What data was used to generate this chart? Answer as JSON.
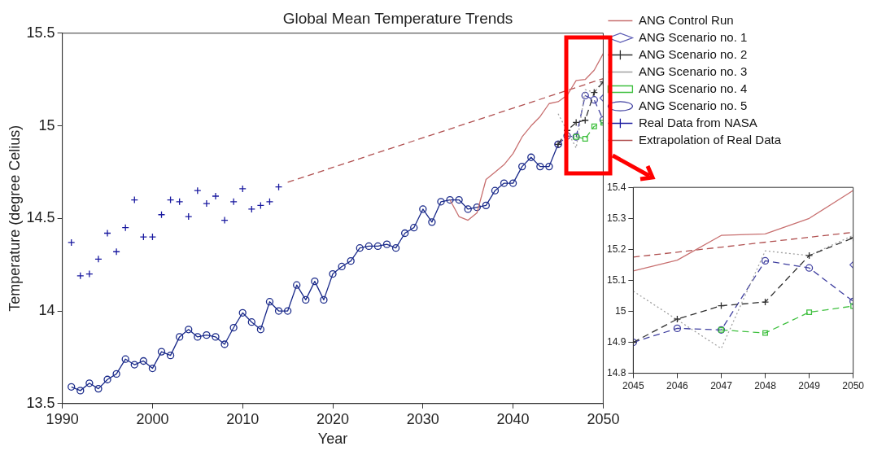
{
  "chart_data": [
    {
      "type": "line",
      "title": "Global Mean Temperature Trends",
      "xlabel": "Year",
      "ylabel": "Temperature (degree Celius)",
      "xlim": [
        1990,
        2050
      ],
      "xticks": [
        1990,
        2000,
        2010,
        2020,
        2030,
        2040,
        2050
      ],
      "ylim": [
        13.5,
        15.5
      ],
      "yticks": [
        13.5,
        14,
        14.5,
        15,
        15.5
      ],
      "legend": "top right",
      "series": [
        {
          "name": "ANG Control Run",
          "type": "line",
          "color": "#c87070",
          "marker": "none",
          "line_style": "solid",
          "x": [
            2033,
            2034,
            2035,
            2036,
            2037,
            2038,
            2039,
            2040,
            2041,
            2042,
            2043,
            2044,
            2045,
            2046,
            2047,
            2048,
            2049,
            2050
          ],
          "values": [
            14.6,
            14.51,
            14.49,
            14.53,
            14.71,
            14.75,
            14.79,
            14.85,
            14.94,
            15.0,
            15.05,
            15.12,
            15.13,
            15.165,
            15.245,
            15.25,
            15.3,
            15.39
          ]
        },
        {
          "name": "ANG Scenario no. 1",
          "type": "scatter",
          "color": "#5a5ab4",
          "marker": "diamond",
          "x": [
            2050
          ],
          "values": [
            15.15
          ]
        },
        {
          "name": "ANG Scenario no. 2",
          "type": "line",
          "color": "#303030",
          "marker": "cross",
          "line_style": "dashed",
          "x": [
            2045,
            2046,
            2047,
            2048,
            2049,
            2050
          ],
          "values": [
            14.9,
            14.975,
            15.018,
            15.03,
            15.18,
            15.237
          ]
        },
        {
          "name": "ANG Scenario no. 3",
          "type": "line",
          "color": "#a0a0a0",
          "marker": "none",
          "line_style": "dotted",
          "x": [
            2045,
            2047,
            2048,
            2049,
            2050
          ],
          "values": [
            15.065,
            14.88,
            15.195,
            15.18,
            15.245
          ]
        },
        {
          "name": "ANG Scenario no. 4",
          "type": "line",
          "color": "#40c040",
          "marker": "square",
          "line_style": "dashed",
          "x": [
            2047,
            2048,
            2049,
            2050
          ],
          "values": [
            14.94,
            14.93,
            14.997,
            15.017
          ]
        },
        {
          "name": "ANG Scenario no. 5",
          "type": "line",
          "color": "#4040a0",
          "marker": "circle",
          "line_style": "dashed",
          "x": [
            2045,
            2046,
            2047,
            2048,
            2049,
            2050
          ],
          "values": [
            14.9,
            14.945,
            14.94,
            15.163,
            15.14,
            15.032
          ]
        },
        {
          "name": "Real Data from NASA",
          "type": "scatter",
          "color": "#1a1aa0",
          "marker": "cross",
          "x": [
            1991,
            1992,
            1993,
            1994,
            1995,
            1996,
            1997,
            1998,
            1999,
            2000,
            2001,
            2002,
            2003,
            2004,
            2005,
            2006,
            2007,
            2008,
            2009,
            2010,
            2011,
            2012,
            2013,
            2014
          ],
          "values": [
            14.37,
            14.19,
            14.2,
            14.28,
            14.42,
            14.32,
            14.45,
            14.6,
            14.4,
            14.4,
            14.52,
            14.6,
            14.59,
            14.51,
            14.65,
            14.58,
            14.62,
            14.49,
            14.59,
            14.66,
            14.55,
            14.57,
            14.59,
            14.67
          ]
        },
        {
          "name": "Extrapolation of Real Data",
          "type": "line",
          "color": "#b05050",
          "marker": "none",
          "line_style": "dashed",
          "x": [
            2015,
            2050
          ],
          "values": [
            14.695,
            15.255
          ]
        },
        {
          "type": "line",
          "color": "#1a2a8a",
          "marker": "circle",
          "line_style": "solid",
          "x": [
            1991,
            1992,
            1993,
            1994,
            1995,
            1996,
            1997,
            1998,
            1999,
            2000,
            2001,
            2002,
            2003,
            2004,
            2005,
            2006,
            2007,
            2008,
            2009,
            2010,
            2011,
            2012,
            2013,
            2014,
            2015,
            2016,
            2017,
            2018,
            2019,
            2020,
            2021,
            2022,
            2023,
            2024,
            2025,
            2026,
            2027,
            2028,
            2029,
            2030,
            2031,
            2032,
            2033,
            2034,
            2035,
            2036,
            2037,
            2038,
            2039,
            2040,
            2041,
            2042,
            2043,
            2044,
            2045
          ],
          "values": [
            13.59,
            13.57,
            13.61,
            13.58,
            13.63,
            13.66,
            13.74,
            13.71,
            13.73,
            13.69,
            13.78,
            13.76,
            13.86,
            13.9,
            13.86,
            13.87,
            13.86,
            13.82,
            13.91,
            13.99,
            13.94,
            13.9,
            14.05,
            14.0,
            14.0,
            14.14,
            14.06,
            14.16,
            14.06,
            14.2,
            14.24,
            14.27,
            14.34,
            14.35,
            14.35,
            14.36,
            14.34,
            14.42,
            14.45,
            14.55,
            14.48,
            14.59,
            14.6,
            14.6,
            14.55,
            14.56,
            14.57,
            14.65,
            14.69,
            14.69,
            14.78,
            14.83,
            14.78,
            14.78,
            14.9
          ]
        }
      ]
    },
    {
      "type": "line",
      "xlim": [
        2045,
        2050
      ],
      "xticks": [
        2045,
        2046,
        2047,
        2048,
        2049,
        2050
      ],
      "ylim": [
        14.8,
        15.4
      ],
      "yticks": [
        14.8,
        14.9,
        15,
        15.1,
        15.2,
        15.3,
        15.4
      ],
      "series": [
        {
          "type": "line",
          "color": "#c87070",
          "marker": "none",
          "line_style": "solid",
          "x": [
            2045,
            2046,
            2047,
            2048,
            2049,
            2050
          ],
          "values": [
            15.13,
            15.165,
            15.245,
            15.25,
            15.3,
            15.39
          ]
        },
        {
          "type": "line",
          "color": "#b05050",
          "marker": "none",
          "line_style": "dashed",
          "x": [
            2045,
            2050
          ],
          "values": [
            15.175,
            15.255
          ]
        },
        {
          "type": "scatter",
          "color": "#5a5ab4",
          "marker": "diamond",
          "x": [
            2050
          ],
          "values": [
            15.15
          ]
        },
        {
          "type": "line",
          "color": "#303030",
          "marker": "cross",
          "line_style": "dashed",
          "x": [
            2045,
            2046,
            2047,
            2048,
            2049,
            2050
          ],
          "values": [
            14.9,
            14.975,
            15.018,
            15.03,
            15.18,
            15.237
          ]
        },
        {
          "type": "line",
          "color": "#a0a0a0",
          "marker": "none",
          "line_style": "dotted",
          "x": [
            2045,
            2047,
            2048,
            2049,
            2050
          ],
          "values": [
            15.065,
            14.88,
            15.195,
            15.18,
            15.245
          ]
        },
        {
          "type": "line",
          "color": "#40c040",
          "marker": "square",
          "line_style": "dashed",
          "x": [
            2047,
            2048,
            2049,
            2050
          ],
          "values": [
            14.94,
            14.93,
            14.997,
            15.017
          ]
        },
        {
          "type": "line",
          "color": "#4040a0",
          "marker": "circle",
          "line_style": "dashed",
          "x": [
            2045,
            2046,
            2047,
            2048,
            2049,
            2050
          ],
          "values": [
            14.9,
            14.945,
            14.94,
            15.163,
            15.14,
            15.032
          ]
        }
      ]
    }
  ]
}
